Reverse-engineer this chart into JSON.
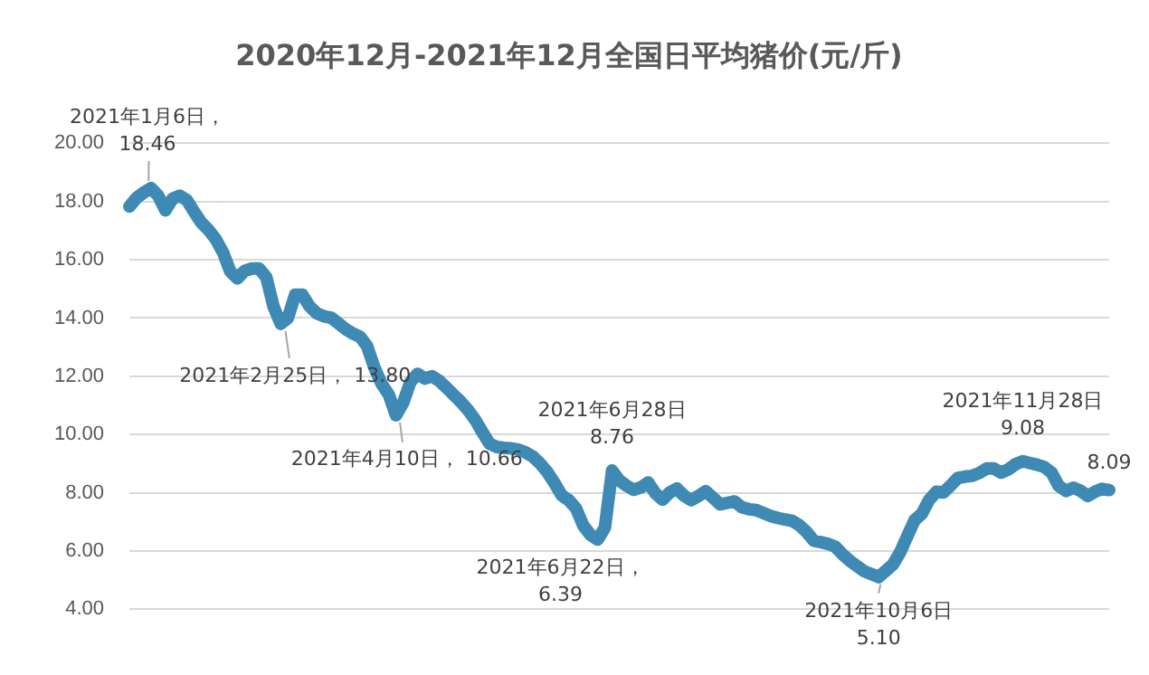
{
  "chart_data": {
    "type": "line",
    "title": "2020年12月-2021年12月全国日平均猪价(元/斤)",
    "categories": [
      null,
      null,
      null,
      null,
      null,
      null,
      null,
      null,
      null,
      null,
      null,
      null,
      null,
      null,
      null,
      null,
      null,
      null,
      null,
      null,
      null,
      null,
      null,
      null,
      null,
      null,
      null,
      null,
      null,
      null,
      null,
      null,
      null,
      null,
      null,
      null,
      null,
      null,
      null,
      null,
      null,
      null,
      null,
      null,
      null,
      null,
      null,
      null,
      null,
      null,
      null,
      null,
      null,
      null,
      null,
      null,
      null,
      null,
      null,
      null,
      null,
      null,
      null,
      null,
      null,
      null,
      null,
      null,
      null,
      null,
      null,
      null,
      null,
      null,
      null,
      null,
      null,
      null,
      null,
      null,
      null,
      null,
      null,
      null,
      null,
      null,
      null,
      null,
      null,
      null,
      null,
      null,
      null,
      null,
      null,
      null,
      null,
      null,
      null,
      null,
      null,
      null,
      null,
      null,
      null,
      null,
      null,
      null,
      null,
      null,
      null,
      null,
      null,
      null,
      null,
      null,
      null,
      null,
      null,
      null,
      null,
      null,
      null,
      null,
      null,
      null,
      null,
      null,
      null,
      null,
      null,
      null,
      null,
      null,
      null,
      null,
      null
    ],
    "series": [
      {
        "color": "#3f8ab5",
        "values": [
          17.83,
          18.13,
          18.31,
          18.46,
          18.2,
          17.7,
          18.1,
          18.2,
          18.04,
          17.64,
          17.27,
          17.02,
          16.7,
          16.25,
          15.6,
          15.36,
          15.62,
          15.7,
          15.7,
          15.4,
          14.4,
          13.8,
          14.0,
          14.8,
          14.8,
          14.4,
          14.16,
          14.06,
          14.01,
          13.82,
          13.62,
          13.47,
          13.36,
          13.03,
          12.3,
          11.74,
          11.37,
          10.66,
          11.09,
          11.8,
          12.08,
          11.92,
          12.0,
          11.84,
          11.61,
          11.36,
          11.12,
          10.84,
          10.5,
          10.08,
          9.68,
          9.57,
          9.54,
          9.52,
          9.48,
          9.38,
          9.24,
          9.0,
          8.71,
          8.33,
          7.91,
          7.74,
          7.46,
          6.87,
          6.55,
          6.39,
          6.8,
          8.76,
          8.42,
          8.24,
          8.1,
          8.18,
          8.35,
          7.98,
          7.76,
          8.01,
          8.14,
          7.89,
          7.74,
          7.89,
          8.05,
          7.83,
          7.6,
          7.65,
          7.7,
          7.5,
          7.43,
          7.4,
          7.3,
          7.2,
          7.13,
          7.08,
          7.03,
          6.88,
          6.65,
          6.35,
          6.3,
          6.24,
          6.14,
          5.88,
          5.66,
          5.48,
          5.3,
          5.2,
          5.1,
          5.32,
          5.54,
          5.96,
          6.52,
          7.06,
          7.28,
          7.75,
          8.03,
          8.01,
          8.25,
          8.51,
          8.55,
          8.58,
          8.68,
          8.83,
          8.83,
          8.69,
          8.8,
          8.98,
          9.08,
          9.02,
          8.96,
          8.88,
          8.69,
          8.23,
          8.06,
          8.17,
          8.07,
          7.89,
          8.03,
          8.13,
          8.09
        ]
      }
    ],
    "ylim": [
      4,
      20
    ],
    "yticks": [
      {
        "value": 4,
        "label": "4.00"
      },
      {
        "value": 6,
        "label": "6.00"
      },
      {
        "value": 8,
        "label": "8.00"
      },
      {
        "value": 10,
        "label": "10.00"
      },
      {
        "value": 12,
        "label": "12.00"
      },
      {
        "value": 14,
        "label": "14.00"
      },
      {
        "value": 16,
        "label": "16.00"
      },
      {
        "value": 18,
        "label": "18.00"
      },
      {
        "value": 20,
        "label": "20.00"
      }
    ],
    "grid": "y",
    "annotations": [
      {
        "text": "2021年1月6日， 18.46",
        "y": 18.46
      },
      {
        "text": "2021年2月25日， 13.80",
        "y": 13.8
      },
      {
        "text": "2021年4月10日， 10.66",
        "y": 10.66
      },
      "2021年6月22日， 6.39",
      {
        "text": "2021年6月28日 8.76",
        "y": 8.76
      },
      {
        "text": "2021年10月6日 5.10",
        "y": 5.1
      },
      {
        "text": "2021年11月28日 9.08",
        "y": 9.08
      },
      {
        "text": "8.09",
        "y": 8.09
      }
    ]
  }
}
